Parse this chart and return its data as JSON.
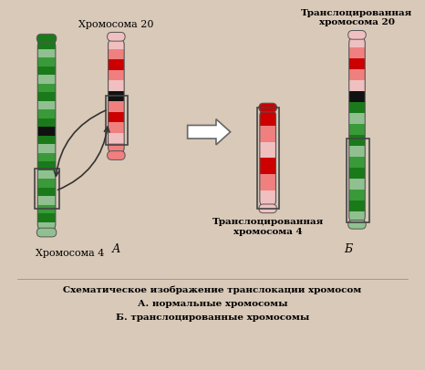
{
  "bg_color": "#d9c9b8",
  "title_line1": "Схематическое изображение транслокации хромосом",
  "title_line2": "А. нормальные хромосомы",
  "title_line3": "Б. транслоцированные хромосомы",
  "label_chr4": "Хромосома 4",
  "label_chr20": "Хромосома 20",
  "label_A": "А",
  "label_B": "Б",
  "label_trans_chr20": "Транслоцированная\nхромосома 20",
  "label_trans_chr4": "Транслоцированная\nхромосома 4",
  "green_dark": "#1a7a1a",
  "green_light": "#90c090",
  "green_mid": "#3a9a3a",
  "red_dark": "#cc0000",
  "red_light": "#f08080",
  "pink_light": "#f0c0c0",
  "black": "#000000",
  "white": "#ffffff",
  "centromere_color": "#111111",
  "border_color": "#555555"
}
